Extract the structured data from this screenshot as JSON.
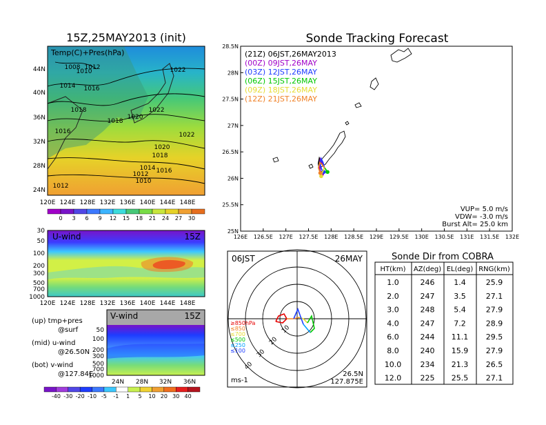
{
  "left_panel": {
    "title": "15Z,25MAY2013 (init)",
    "temp_label": "Temp(C)+Pres(hPa)",
    "lat_labels": [
      "44N",
      "40N",
      "36N",
      "32N",
      "28N",
      "24N"
    ],
    "lon_labels": [
      "120E",
      "124E",
      "128E",
      "132E",
      "136E",
      "140E",
      "144E",
      "148E"
    ],
    "pressure_labels": [
      {
        "text": "1008"
      },
      {
        "text": "1010"
      },
      {
        "text": "1012"
      },
      {
        "text": "1022"
      },
      {
        "text": "1014"
      },
      {
        "text": "1016"
      },
      {
        "text": "1018"
      },
      {
        "text": "1022"
      },
      {
        "text": "1020"
      },
      {
        "text": "1018"
      },
      {
        "text": "1016"
      },
      {
        "text": "1022"
      },
      {
        "text": "1020"
      },
      {
        "text": "1018"
      },
      {
        "text": "1014"
      },
      {
        "text": "1016"
      },
      {
        "text": "1012"
      },
      {
        "text": "1010"
      },
      {
        "text": "1012"
      }
    ],
    "temp_colorbar": [
      "0",
      "3",
      "6",
      "9",
      "12",
      "15",
      "18",
      "21",
      "24",
      "27",
      "30"
    ]
  },
  "uwind_panel": {
    "label": "U-wind",
    "time": "15Z",
    "p_labels": [
      "30",
      "50",
      "100",
      "200",
      "300",
      "500",
      "700",
      "1000"
    ],
    "lon_labels": [
      "120E",
      "124E",
      "128E",
      "132E",
      "136E",
      "140E",
      "144E",
      "148E"
    ]
  },
  "vwind_panel": {
    "label": "V-wind",
    "time": "15Z",
    "p_labels": [
      "50",
      "100",
      "200",
      "300",
      "500",
      "700",
      "1000"
    ],
    "lat_labels": [
      "24N",
      "28N",
      "32N",
      "36N"
    ],
    "colorbar": [
      "-40",
      "-30",
      "-20",
      "-10",
      "-5",
      "-1",
      "1",
      "5",
      "10",
      "20",
      "30",
      "40"
    ]
  },
  "legend_notes": [
    {
      "a": "(up) tmp+pres",
      "b": "@surf"
    },
    {
      "a": "(mid) u-wind",
      "b": "@26.50N"
    },
    {
      "a": "(bot) v-wind",
      "b": "@127.84E"
    }
  ],
  "tracking": {
    "title": "Sonde Tracking Forecast",
    "lat_labels": [
      "28.5N",
      "28N",
      "27.5N",
      "27N",
      "26.5N",
      "26N",
      "25.5N",
      "25N"
    ],
    "lon_labels": [
      "126E",
      "126.5E",
      "127E",
      "127.5E",
      "128E",
      "128.5E",
      "129E",
      "129.5E",
      "130E",
      "130.5E",
      "131E",
      "131.5E",
      "132E"
    ],
    "legend": [
      {
        "text": "(21Z) 06JST,26MAY2013",
        "color": "#000000"
      },
      {
        "text": "(00Z) 09JST,26MAY",
        "color": "#a000c8"
      },
      {
        "text": "(03Z) 12JST,26MAY",
        "color": "#1e3cff"
      },
      {
        "text": "(06Z) 15JST,26MAY",
        "color": "#00c800"
      },
      {
        "text": "(09Z) 18JST,26MAY",
        "color": "#e6dc32"
      },
      {
        "text": "(12Z) 21JST,26MAY",
        "color": "#f08228"
      }
    ],
    "vup": "VUP= 5.0 m/s",
    "vdw": "VDW= -3.0 m/s",
    "burst": "Burst Alt= 25.0 km"
  },
  "hodograph": {
    "time": "06JST",
    "date": "26MAY",
    "unit": "ms-1",
    "loc_lat": "26.5N",
    "loc_lon": "127.875E",
    "ring_labels": [
      "10",
      "20",
      "30",
      "40"
    ],
    "level_legend": [
      {
        "text": "≥850hPa",
        "color": "#e60000"
      },
      {
        "text": "≤850",
        "color": "#f08228"
      },
      {
        "text": "≤700",
        "color": "#e6dc32"
      },
      {
        "text": "≤500",
        "color": "#00c800"
      },
      {
        "text": "≤250",
        "color": "#00a0ff"
      },
      {
        "text": "≤100",
        "color": "#1e3cff"
      }
    ]
  },
  "sonde_table": {
    "title": "Sonde Dir from COBRA",
    "headers": [
      "HT(km)",
      "AZ(deg)",
      "EL(deg)",
      "RNG(km)"
    ],
    "rows": [
      [
        "1.0",
        "246",
        "1.4",
        "25.9"
      ],
      [
        "2.0",
        "247",
        "3.5",
        "27.1"
      ],
      [
        "3.0",
        "248",
        "5.4",
        "27.9"
      ],
      [
        "4.0",
        "247",
        "7.2",
        "28.9"
      ],
      [
        "6.0",
        "244",
        "11.1",
        "29.5"
      ],
      [
        "8.0",
        "240",
        "15.9",
        "27.9"
      ],
      [
        "10.0",
        "234",
        "21.3",
        "26.5"
      ],
      [
        "12.0",
        "225",
        "25.5",
        "27.1"
      ]
    ]
  },
  "chart_data": [
    {
      "type": "line",
      "name": "Sonde Tracking Forecast",
      "title": "Sonde Tracking Forecast",
      "xlim": [
        126,
        132
      ],
      "ylim": [
        25,
        28.5
      ],
      "series": [
        {
          "name": "(21Z) 06JST,26MAY2013",
          "color": "#000000",
          "x": [
            127.85,
            127.78,
            127.74,
            127.72,
            127.74,
            127.78
          ],
          "y": [
            26.2,
            26.32,
            26.38,
            26.28,
            26.16,
            26.1
          ]
        },
        {
          "name": "(00Z) 09JST,26MAY",
          "color": "#a000c8",
          "x": [
            127.85,
            127.8,
            127.76,
            127.74,
            127.76,
            127.8
          ],
          "y": [
            26.2,
            26.3,
            26.36,
            26.26,
            26.14,
            26.08
          ]
        },
        {
          "name": "(03Z) 12JST,26MAY",
          "color": "#1e3cff",
          "x": [
            127.85,
            127.82,
            127.78,
            127.76,
            127.8,
            127.84
          ],
          "y": [
            26.2,
            26.3,
            26.37,
            26.24,
            26.15,
            26.12
          ]
        },
        {
          "name": "(06Z) 15JST,26MAY",
          "color": "#00c800",
          "x": [
            127.85,
            127.88,
            127.9,
            127.92
          ],
          "y": [
            26.2,
            26.17,
            26.14,
            26.12
          ]
        },
        {
          "name": "(09Z) 18JST,26MAY",
          "color": "#e6dc32",
          "x": [
            127.85,
            127.82,
            127.79,
            127.78
          ],
          "y": [
            26.2,
            26.14,
            26.08,
            26.04
          ]
        },
        {
          "name": "(12Z) 21JST,26MAY",
          "color": "#f08228",
          "x": [
            127.85,
            127.8,
            127.75,
            127.72,
            127.76
          ],
          "y": [
            26.2,
            26.26,
            26.3,
            26.2,
            26.1
          ]
        }
      ]
    },
    {
      "type": "table",
      "name": "Sonde Dir from COBRA",
      "columns": [
        "HT(km)",
        "AZ(deg)",
        "EL(deg)",
        "RNG(km)"
      ],
      "ht": [
        1.0,
        2.0,
        3.0,
        4.0,
        6.0,
        8.0,
        10.0,
        12.0
      ],
      "az": [
        246,
        247,
        248,
        247,
        244,
        240,
        234,
        225
      ],
      "el": [
        1.4,
        3.5,
        5.4,
        7.2,
        11.1,
        15.9,
        21.3,
        25.5
      ],
      "rng": [
        25.9,
        27.1,
        27.9,
        28.9,
        29.5,
        27.9,
        26.5,
        27.1
      ]
    }
  ]
}
